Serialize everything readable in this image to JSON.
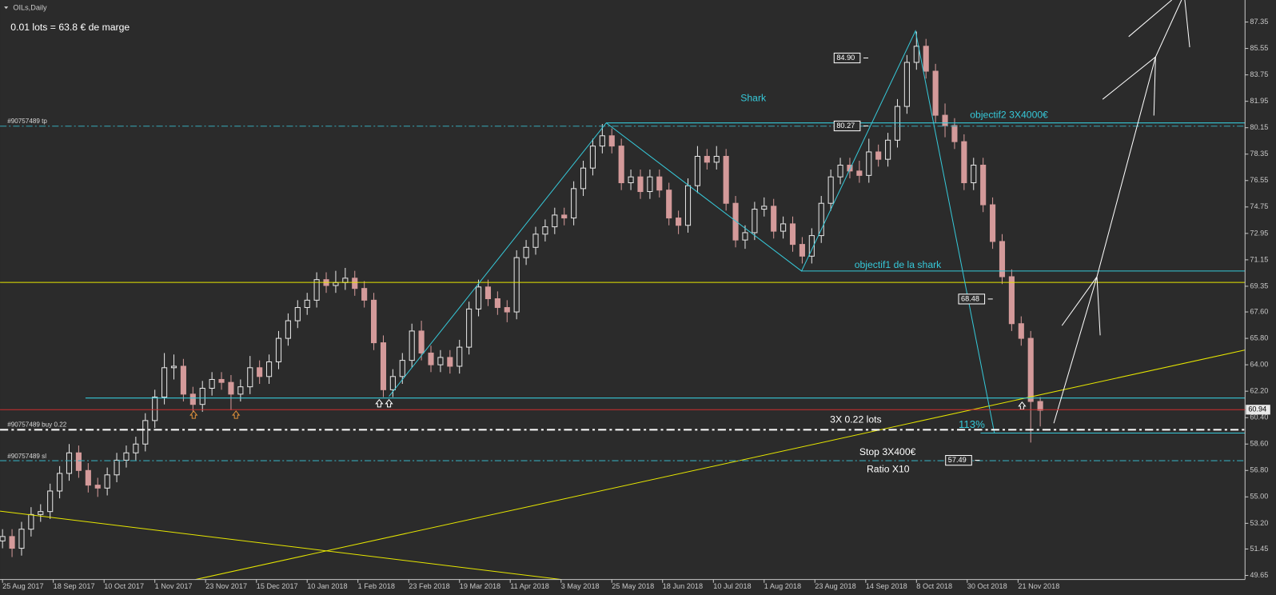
{
  "chart_data": {
    "type": "candlestick",
    "title": "OILs,Daily",
    "subtitle": "0.01 lots = 63.8 € de marge",
    "bull_color": "#e6e6e6",
    "bear_color": "#d49a9a",
    "xlim": [
      -0.26,
      130.34
    ],
    "ylim": [
      49.37,
      88.85
    ],
    "xticks": [
      {
        "value": 0,
        "label": "25 Aug 2017"
      },
      {
        "value": 5.33,
        "label": "18 Sep 2017"
      },
      {
        "value": 10.67,
        "label": "10 Oct 2017"
      },
      {
        "value": 16,
        "label": "1 Nov 2017"
      },
      {
        "value": 21.33,
        "label": "23 Nov 2017"
      },
      {
        "value": 26.67,
        "label": "15 Dec 2017"
      },
      {
        "value": 32,
        "label": "10 Jan 2018"
      },
      {
        "value": 37.33,
        "label": "1 Feb 2018"
      },
      {
        "value": 42.67,
        "label": "23 Feb 2018"
      },
      {
        "value": 48,
        "label": "19 Mar 2018"
      },
      {
        "value": 53.33,
        "label": "11 Apr 2018"
      },
      {
        "value": 58.67,
        "label": "3 May 2018"
      },
      {
        "value": 64,
        "label": "25 May 2018"
      },
      {
        "value": 69.33,
        "label": "18 Jun 2018"
      },
      {
        "value": 74.67,
        "label": "10 Jul 2018"
      },
      {
        "value": 80,
        "label": "1 Aug 2018"
      },
      {
        "value": 85.33,
        "label": "23 Aug 2018"
      },
      {
        "value": 90.67,
        "label": "14 Sep 2018"
      },
      {
        "value": 96,
        "label": "8 Oct 2018"
      },
      {
        "value": 101.33,
        "label": "30 Oct 2018"
      },
      {
        "value": 106.67,
        "label": "21 Nov 2018"
      }
    ],
    "yticks": [
      49.65,
      51.45,
      {
        "value": 53.2,
        "label": "53.20"
      },
      {
        "value": 55,
        "label": "55.00"
      },
      {
        "value": 56.8,
        "label": "56.80"
      },
      {
        "value": 58.6,
        "label": "58.60"
      },
      {
        "value": 60.4,
        "label": "60.40"
      },
      {
        "value": 62.2,
        "label": "62.20"
      },
      {
        "value": 64,
        "label": "64.00"
      },
      {
        "value": 65.8,
        "label": "65.80"
      },
      {
        "value": 67.6,
        "label": "67.60"
      },
      69.35,
      71.15,
      72.95,
      74.75,
      76.55,
      78.35,
      80.15,
      81.95,
      83.75,
      85.55,
      87.35
    ],
    "current_price": 60.94,
    "price_labels": [
      {
        "value": 84.9,
        "label": "84.90"
      },
      80.27,
      68.48,
      57.49
    ],
    "annotations": [
      "Shark",
      "objectif2 3X4000€",
      "objectif1 de la shark",
      "3X 0.22 lots",
      "113%",
      "Stop 3X400€",
      "Ratio X10",
      "#90757489 tp",
      "#90757489 buy 0.22",
      "#90757489 sl"
    ],
    "candles": [
      [
        52.0,
        52.8,
        51.5,
        52.3
      ],
      [
        52.3,
        52.8,
        50.9,
        51.5
      ],
      [
        51.5,
        53.3,
        51.0,
        52.8
      ],
      [
        52.8,
        54.3,
        52.3,
        53.8
      ],
      [
        53.8,
        54.5,
        53.3,
        54.0
      ],
      [
        54.0,
        55.9,
        53.5,
        55.4
      ],
      [
        55.4,
        57.1,
        54.9,
        56.6
      ],
      [
        56.6,
        58.6,
        56.1,
        58.0
      ],
      [
        58.0,
        58.5,
        56.3,
        56.8
      ],
      [
        56.8,
        57.3,
        55.3,
        55.8
      ],
      [
        55.8,
        56.3,
        55.0,
        55.6
      ],
      [
        55.6,
        57.0,
        55.1,
        56.5
      ],
      [
        56.5,
        58.0,
        56.0,
        57.5
      ],
      [
        57.5,
        58.5,
        57.0,
        58.0
      ],
      [
        58.0,
        59.1,
        57.5,
        58.6
      ],
      [
        58.6,
        60.7,
        58.1,
        60.2
      ],
      [
        60.2,
        62.3,
        59.7,
        61.8
      ],
      [
        61.8,
        64.8,
        61.3,
        63.8
      ],
      [
        63.8,
        64.7,
        63.0,
        63.9
      ],
      [
        63.9,
        64.4,
        61.5,
        62.0
      ],
      [
        62.0,
        62.5,
        60.8,
        61.3
      ],
      [
        61.3,
        62.9,
        60.8,
        62.4
      ],
      [
        62.4,
        63.5,
        61.9,
        63.0
      ],
      [
        63.0,
        63.5,
        62.3,
        62.8
      ],
      [
        62.8,
        63.3,
        60.9,
        62.0
      ],
      [
        62.0,
        63.0,
        61.5,
        62.5
      ],
      [
        62.5,
        64.6,
        62.0,
        63.8
      ],
      [
        63.8,
        64.3,
        62.7,
        63.2
      ],
      [
        63.2,
        64.7,
        62.7,
        64.2
      ],
      [
        64.2,
        66.3,
        63.7,
        65.8
      ],
      [
        65.8,
        67.5,
        65.3,
        67.0
      ],
      [
        67.0,
        68.4,
        66.5,
        67.9
      ],
      [
        67.9,
        68.9,
        67.4,
        68.4
      ],
      [
        68.4,
        70.3,
        67.9,
        69.8
      ],
      [
        69.8,
        70.3,
        68.9,
        69.4
      ],
      [
        69.4,
        70.4,
        68.9,
        69.6
      ],
      [
        69.6,
        70.6,
        69.1,
        69.9
      ],
      [
        69.9,
        70.4,
        68.7,
        69.2
      ],
      [
        69.2,
        69.7,
        67.9,
        68.4
      ],
      [
        68.4,
        68.9,
        65.0,
        65.5
      ],
      [
        65.5,
        66.0,
        61.8,
        62.3
      ],
      [
        62.3,
        63.7,
        61.8,
        63.2
      ],
      [
        63.2,
        64.8,
        62.7,
        64.3
      ],
      [
        64.3,
        66.8,
        63.8,
        66.3
      ],
      [
        66.3,
        67.0,
        64.3,
        64.8
      ],
      [
        64.8,
        65.3,
        63.5,
        64.0
      ],
      [
        64.0,
        65.0,
        63.5,
        64.5
      ],
      [
        64.5,
        65.0,
        63.4,
        63.9
      ],
      [
        63.9,
        65.7,
        63.4,
        65.2
      ],
      [
        65.2,
        68.3,
        64.7,
        67.8
      ],
      [
        67.8,
        69.8,
        67.3,
        69.3
      ],
      [
        69.3,
        69.8,
        68.0,
        68.5
      ],
      [
        68.5,
        69.0,
        67.4,
        67.9
      ],
      [
        67.9,
        68.4,
        66.9,
        67.6
      ],
      [
        67.6,
        71.8,
        67.1,
        71.3
      ],
      [
        71.3,
        72.5,
        70.8,
        72.0
      ],
      [
        72.0,
        73.4,
        71.5,
        72.9
      ],
      [
        72.9,
        73.9,
        72.4,
        73.4
      ],
      [
        73.4,
        74.7,
        72.9,
        74.2
      ],
      [
        74.2,
        74.7,
        73.5,
        74.0
      ],
      [
        74.0,
        76.5,
        73.5,
        76.0
      ],
      [
        76.0,
        77.9,
        75.5,
        77.4
      ],
      [
        77.4,
        79.4,
        76.9,
        78.9
      ],
      [
        78.9,
        80.4,
        78.4,
        79.6
      ],
      [
        79.6,
        80.1,
        78.4,
        78.9
      ],
      [
        78.9,
        79.4,
        75.9,
        76.4
      ],
      [
        76.4,
        77.3,
        75.9,
        76.8
      ],
      [
        76.8,
        77.3,
        75.3,
        75.8
      ],
      [
        75.8,
        77.3,
        75.3,
        76.8
      ],
      [
        76.8,
        77.3,
        75.4,
        75.9
      ],
      [
        75.9,
        76.4,
        73.5,
        74.0
      ],
      [
        74.0,
        74.5,
        72.9,
        73.5
      ],
      [
        73.5,
        76.7,
        73.0,
        76.2
      ],
      [
        76.2,
        78.9,
        75.7,
        78.2
      ],
      [
        78.2,
        78.7,
        77.3,
        77.8
      ],
      [
        77.8,
        78.9,
        77.3,
        78.2
      ],
      [
        78.2,
        78.7,
        74.5,
        75.0
      ],
      [
        75.0,
        75.5,
        72.0,
        72.5
      ],
      [
        72.5,
        73.5,
        71.9,
        73.0
      ],
      [
        73.0,
        75.1,
        72.5,
        74.6
      ],
      [
        74.6,
        75.4,
        74.1,
        74.8
      ],
      [
        74.8,
        75.3,
        72.6,
        73.1
      ],
      [
        73.1,
        74.1,
        72.6,
        73.6
      ],
      [
        73.6,
        74.1,
        71.7,
        72.2
      ],
      [
        72.2,
        72.7,
        70.9,
        71.4
      ],
      [
        71.4,
        73.3,
        70.9,
        72.8
      ],
      [
        72.8,
        75.5,
        72.3,
        75.0
      ],
      [
        75.0,
        77.3,
        74.5,
        76.8
      ],
      [
        76.8,
        78.1,
        76.3,
        77.6
      ],
      [
        77.6,
        78.1,
        76.7,
        77.2
      ],
      [
        77.2,
        77.9,
        76.4,
        76.9
      ],
      [
        76.9,
        79.4,
        76.4,
        78.5
      ],
      [
        78.5,
        79.0,
        77.5,
        78.0
      ],
      [
        78.0,
        79.8,
        77.5,
        79.3
      ],
      [
        79.3,
        82.1,
        78.8,
        81.6
      ],
      [
        81.6,
        85.1,
        81.1,
        84.6
      ],
      [
        84.6,
        86.7,
        84.1,
        85.7
      ],
      [
        85.7,
        86.2,
        83.5,
        84.0
      ],
      [
        84.0,
        84.5,
        80.5,
        81.0
      ],
      [
        81.0,
        81.8,
        79.5,
        80.3
      ],
      [
        80.3,
        80.8,
        78.7,
        79.2
      ],
      [
        79.2,
        79.7,
        75.9,
        76.4
      ],
      [
        76.4,
        78.1,
        75.9,
        77.6
      ],
      [
        77.6,
        78.1,
        74.4,
        74.9
      ],
      [
        74.9,
        75.4,
        71.9,
        72.4
      ],
      [
        72.4,
        72.9,
        69.5,
        70.0
      ],
      [
        70.0,
        70.5,
        66.3,
        66.8
      ],
      [
        66.8,
        67.3,
        65.3,
        65.8
      ],
      [
        65.8,
        66.3,
        58.7,
        61.5
      ],
      [
        61.5,
        61.8,
        59.8,
        60.9
      ]
    ]
  }
}
